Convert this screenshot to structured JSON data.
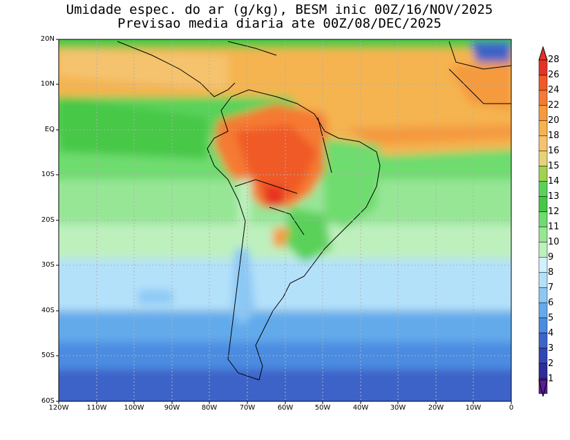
{
  "title": {
    "line1": "Umidade espec. do ar (g/kg), BESM inic 00Z/16/NOV/2025",
    "line2": "Previsao media diaria ate 00Z/08/DEC/2025"
  },
  "map": {
    "lon_range": [
      -120,
      0
    ],
    "lat_range": [
      -60,
      20
    ],
    "grid": "dotted",
    "lat_labels": [
      "20N",
      "10N",
      "EQ",
      "10S",
      "20S",
      "30S",
      "40S",
      "50S",
      "60S"
    ],
    "lon_labels": [
      "120W",
      "110W",
      "100W",
      "90W",
      "80W",
      "70W",
      "60W",
      "50W",
      "40W",
      "30W",
      "20W",
      "10W",
      "0"
    ]
  },
  "colorbar": {
    "labels": [
      "28",
      "26",
      "24",
      "22",
      "20",
      "18",
      "16",
      "15",
      "14",
      "13",
      "12",
      "11",
      "10",
      "9",
      "8",
      "7",
      "6",
      "5",
      "4",
      "3",
      "2",
      "1"
    ],
    "colors": [
      "#e63224",
      "#f05a28",
      "#f57a32",
      "#f59a3c",
      "#f5b450",
      "#f5c36e",
      "#e6d278",
      "#a0d250",
      "#5ad25a",
      "#46c846",
      "#6edc6e",
      "#96e696",
      "#bef0be",
      "#d2f0ff",
      "#b4e1fa",
      "#8cc8f5",
      "#64aaeb",
      "#4b8ce1",
      "#3c64c8",
      "#3246b4",
      "#2d2d9b",
      "#5a1e96"
    ]
  }
}
